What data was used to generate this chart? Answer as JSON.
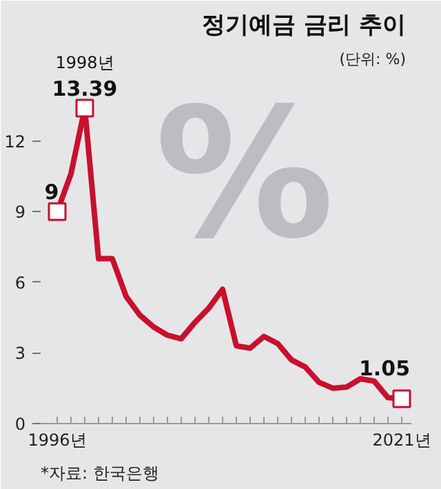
{
  "chart_data": {
    "type": "line",
    "title": "정기예금 금리 추이",
    "subtitle": "(단위: %)",
    "x": [
      1996,
      1997,
      1998,
      1999,
      2000,
      2001,
      2002,
      2003,
      2004,
      2005,
      2006,
      2007,
      2008,
      2009,
      2010,
      2011,
      2012,
      2013,
      2014,
      2015,
      2016,
      2017,
      2018,
      2019,
      2020,
      2021
    ],
    "series": [
      {
        "color": "#c8102e",
        "values": [
          9,
          10.6,
          13.39,
          7.0,
          7.0,
          5.4,
          4.6,
          4.1,
          3.75,
          3.6,
          4.3,
          4.9,
          5.7,
          3.3,
          3.2,
          3.7,
          3.4,
          2.7,
          2.4,
          1.75,
          1.5,
          1.55,
          1.9,
          1.8,
          1.1,
          1.05
        ]
      }
    ],
    "annotations": [
      "%",
      "*자료: 한국은행",
      {
        "text": "9",
        "x": 1996,
        "y": 9
      },
      {
        "text": "13.39",
        "x": 1998,
        "y": 13.39
      },
      {
        "text": "1998년",
        "x": 1998,
        "y": 13.39
      },
      {
        "text": "1.05",
        "x": 2021,
        "y": 1.05
      }
    ],
    "xlim": [
      1994.8,
      2021.7
    ],
    "ylim": [
      0,
      17.6
    ],
    "xticks": [
      {
        "value": 1996,
        "label": "1996년"
      },
      {
        "value": 1997,
        "label": null
      },
      {
        "value": 1998,
        "label": null
      },
      {
        "value": 1999,
        "label": null
      },
      {
        "value": 2000,
        "label": null
      },
      {
        "value": 2001,
        "label": null
      },
      {
        "value": 2002,
        "label": null
      },
      {
        "value": 2003,
        "label": null
      },
      {
        "value": 2004,
        "label": null
      },
      {
        "value": 2005,
        "label": null
      },
      {
        "value": 2006,
        "label": null
      },
      {
        "value": 2007,
        "label": null
      },
      {
        "value": 2008,
        "label": null
      },
      {
        "value": 2009,
        "label": null
      },
      {
        "value": 2010,
        "label": null
      },
      {
        "value": 2011,
        "label": null
      },
      {
        "value": 2012,
        "label": null
      },
      {
        "value": 2013,
        "label": null
      },
      {
        "value": 2014,
        "label": null
      },
      {
        "value": 2015,
        "label": null
      },
      {
        "value": 2016,
        "label": null
      },
      {
        "value": 2017,
        "label": null
      },
      {
        "value": 2018,
        "label": null
      },
      {
        "value": 2019,
        "label": null
      },
      {
        "value": 2020,
        "label": null
      },
      {
        "value": 2021,
        "label": "2021년"
      }
    ],
    "yticks": [
      0,
      3,
      6,
      9,
      12
    ],
    "marker": "none",
    "line_style": "solid"
  }
}
